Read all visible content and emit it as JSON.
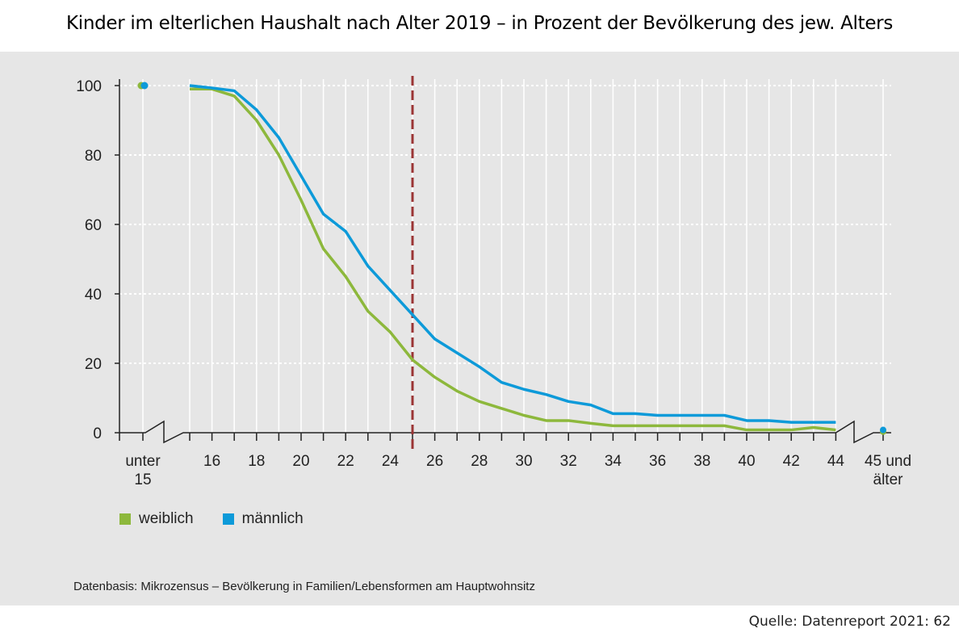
{
  "title": "Kinder im elterlichen Haushalt nach Alter 2019 – in Prozent der Bevölkerung des jew. Alters",
  "footnote": "Datenbasis: Mikrozensus – Bevölkerung in Familien/Lebensformen am Hauptwohnsitz",
  "source": "Quelle: Datenreport 2021: 62",
  "chart_data": {
    "type": "line",
    "title": "Kinder im elterlichen Haushalt nach Alter 2019 – in Prozent der Bevölkerung des jew. Alters",
    "ylim": [
      0,
      100
    ],
    "yticks": [
      0,
      20,
      40,
      60,
      80,
      100
    ],
    "x": [
      15,
      16,
      17,
      18,
      19,
      20,
      21,
      22,
      23,
      24,
      25,
      26,
      27,
      28,
      29,
      30,
      31,
      32,
      33,
      34,
      35,
      36,
      37,
      38,
      39,
      40,
      41,
      42,
      43,
      44
    ],
    "xtick_labels": [
      "16",
      "18",
      "20",
      "22",
      "24",
      "26",
      "28",
      "30",
      "32",
      "34",
      "36",
      "38",
      "40",
      "42",
      "44"
    ],
    "category_left": {
      "label_line1": "unter",
      "label_line2": "15",
      "values": {
        "weiblich": 100,
        "männlich": 100
      }
    },
    "category_right": {
      "label_line1": "45 und",
      "label_line2": "älter",
      "values": {
        "weiblich": 0.3,
        "männlich": 0.8
      }
    },
    "reference_line_x": 25,
    "grid": true,
    "legend_placement": "bottom-left",
    "series": [
      {
        "name": "weiblich",
        "color": "#8db83c",
        "values": [
          99,
          99,
          97,
          90,
          80,
          67,
          53,
          45,
          35,
          29,
          21,
          16,
          12,
          9,
          7,
          5,
          3.5,
          3.5,
          2.7,
          2,
          2,
          2,
          2,
          2,
          2,
          0.8,
          0.8,
          0.8,
          1.5,
          0.8
        ]
      },
      {
        "name": "männlich",
        "color": "#0d9ad9",
        "values": [
          100,
          99.3,
          98.5,
          93,
          85,
          74,
          63,
          58,
          48,
          41,
          34,
          27,
          23,
          19,
          14.5,
          12.5,
          11,
          9,
          8,
          5.5,
          5.5,
          5,
          5,
          5,
          5,
          3.5,
          3.5,
          3,
          3,
          3
        ]
      }
    ],
    "reference_line_color": "#9b3535"
  }
}
